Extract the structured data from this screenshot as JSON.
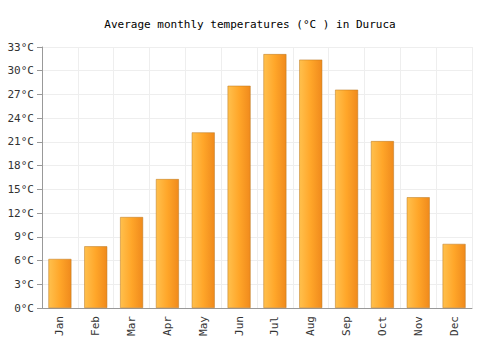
{
  "chart_data": {
    "type": "bar",
    "title": "Average monthly temperatures (°C ) in Duruca",
    "categories": [
      "Jan",
      "Feb",
      "Mar",
      "Apr",
      "May",
      "Jun",
      "Jul",
      "Aug",
      "Sep",
      "Oct",
      "Nov",
      "Dec"
    ],
    "values": [
      6.2,
      7.8,
      11.5,
      16.3,
      22.2,
      28.1,
      32.1,
      31.4,
      27.6,
      21.1,
      14.0,
      8.1
    ],
    "color": "#ffa629",
    "ylim": [
      0,
      33
    ],
    "yticks": [
      {
        "value": 0,
        "label": "0°C"
      },
      {
        "value": 3,
        "label": "3°C"
      },
      {
        "value": 6,
        "label": "6°C"
      },
      {
        "value": 9,
        "label": "9°C"
      },
      {
        "value": 12,
        "label": "12°C"
      },
      {
        "value": 15,
        "label": "15°C"
      },
      {
        "value": 18,
        "label": "18°C"
      },
      {
        "value": 21,
        "label": "21°C"
      },
      {
        "value": 24,
        "label": "24°C"
      },
      {
        "value": 27,
        "label": "27°C"
      },
      {
        "value": 30,
        "label": "30°C"
      },
      {
        "value": 33,
        "label": "33°C"
      }
    ],
    "grid": true
  }
}
